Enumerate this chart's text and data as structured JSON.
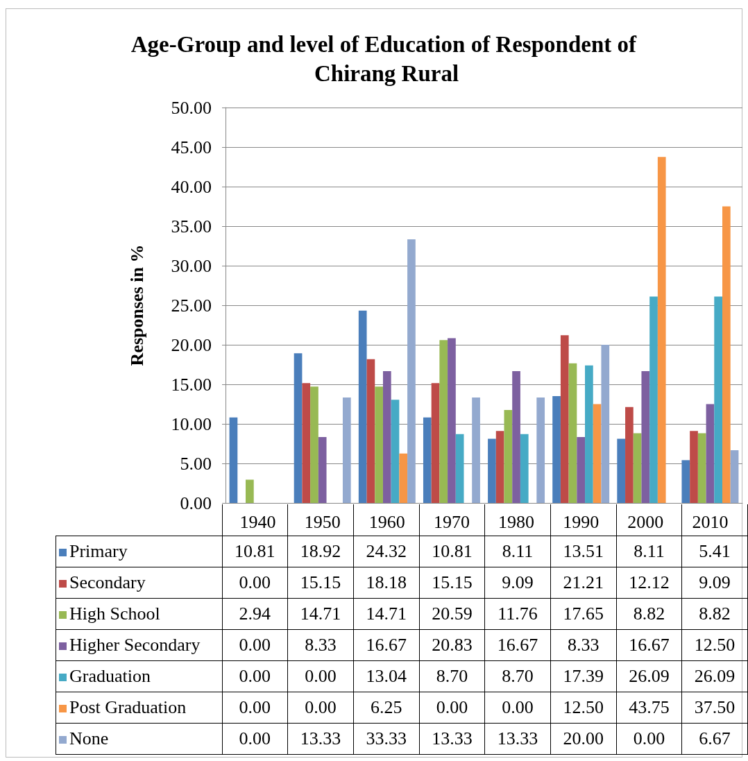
{
  "chart_data": {
    "type": "bar",
    "title": "Age-Group and level of Education of Respondent of Chirang Rural",
    "ylabel": "Responses in %",
    "categories": [
      "1940",
      "1950",
      "1960",
      "1970",
      "1980",
      "1990",
      "2000",
      "2010"
    ],
    "series": [
      {
        "name": "Primary",
        "color": "#4a7ebb",
        "values": [
          10.81,
          18.92,
          24.32,
          10.81,
          8.11,
          13.51,
          8.11,
          5.41
        ],
        "value_labels": [
          "10.81",
          "18.92",
          "24.32",
          "10.81",
          "8.11",
          "13.51",
          "8.11",
          "5.41"
        ]
      },
      {
        "name": "Secondary",
        "color": "#be4b48",
        "values": [
          0,
          15.15,
          18.18,
          15.15,
          9.09,
          21.21,
          12.12,
          9.09
        ],
        "value_labels": [
          "0.00",
          "15.15",
          "18.18",
          "15.15",
          "9.09",
          "21.21",
          "12.12",
          "9.09"
        ]
      },
      {
        "name": "High School",
        "color": "#98b954",
        "values": [
          2.94,
          14.71,
          14.71,
          20.59,
          11.76,
          17.65,
          8.82,
          8.82
        ],
        "value_labels": [
          "2.94",
          "14.71",
          "14.71",
          "20.59",
          "11.76",
          "17.65",
          "8.82",
          "8.82"
        ]
      },
      {
        "name": "Higher Secondary",
        "color": "#7d60a0",
        "values": [
          0,
          8.33,
          16.67,
          20.83,
          16.67,
          8.33,
          16.67,
          12.5
        ],
        "value_labels": [
          "0.00",
          "8.33",
          "16.67",
          "20.83",
          "16.67",
          "8.33",
          "16.67",
          "12.50"
        ]
      },
      {
        "name": "Graduation",
        "color": "#46aac5",
        "values": [
          0,
          0,
          13.04,
          8.7,
          8.7,
          17.39,
          26.09,
          26.09
        ],
        "value_labels": [
          "0.00",
          "0.00",
          "13.04",
          "8.70",
          "8.70",
          "17.39",
          "26.09",
          "26.09"
        ]
      },
      {
        "name": "Post Graduation",
        "color": "#f79646",
        "values": [
          0,
          0,
          6.25,
          0,
          0,
          12.5,
          43.75,
          37.5
        ],
        "value_labels": [
          "0.00",
          "0.00",
          "6.25",
          "0.00",
          "0.00",
          "12.50",
          "43.75",
          "37.50"
        ]
      },
      {
        "name": "None",
        "color": "#93a9cf",
        "values": [
          0,
          13.33,
          33.33,
          13.33,
          13.33,
          20,
          0,
          6.67
        ],
        "value_labels": [
          "0.00",
          "13.33",
          "33.33",
          "13.33",
          "13.33",
          "20.00",
          "0.00",
          "6.67"
        ]
      }
    ],
    "ylim": [
      0,
      50
    ],
    "yticks": [
      {
        "value": 0,
        "label": "0.00"
      },
      {
        "value": 5,
        "label": "5.00"
      },
      {
        "value": 10,
        "label": "10.00"
      },
      {
        "value": 15,
        "label": "15.00"
      },
      {
        "value": 20,
        "label": "20.00"
      },
      {
        "value": 25,
        "label": "25.00"
      },
      {
        "value": 30,
        "label": "30.00"
      },
      {
        "value": 35,
        "label": "35.00"
      },
      {
        "value": 40,
        "label": "40.00"
      },
      {
        "value": 45,
        "label": "45.00"
      },
      {
        "value": 50,
        "label": "50.00"
      }
    ],
    "grid": "y",
    "legend": "bottom"
  }
}
